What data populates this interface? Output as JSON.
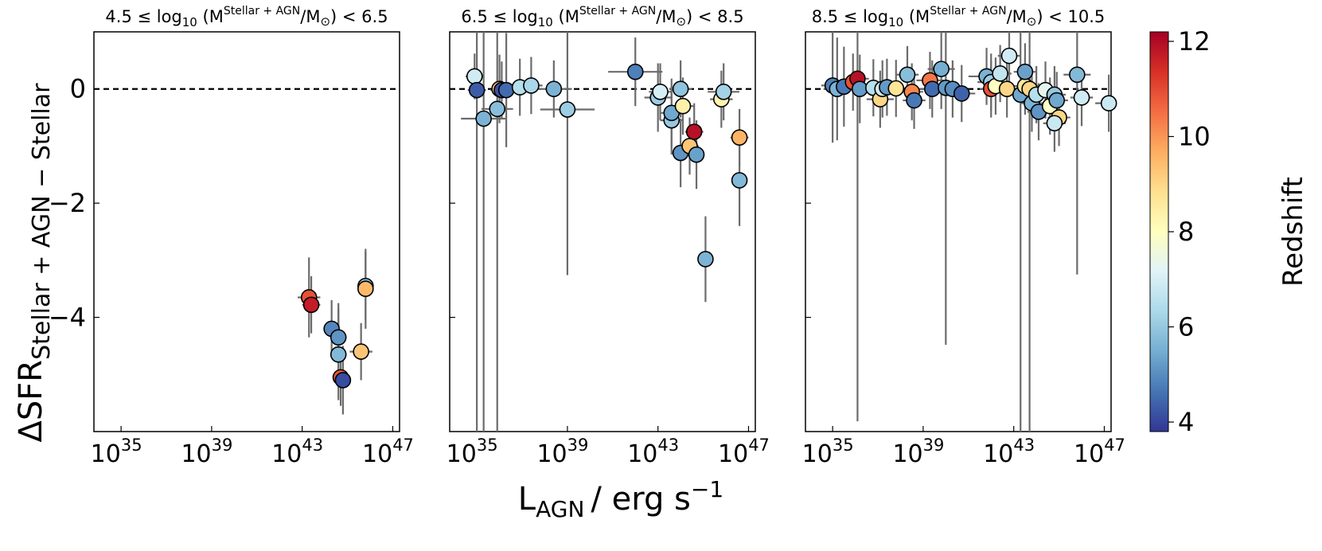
{
  "chart_data": {
    "type": "scatter",
    "xlabel": {
      "main": "L",
      "sub": "AGN",
      "unit": "/ erg s",
      "sup": "−1"
    },
    "ylabel": {
      "main": "ΔSFR",
      "sub": "Stellar + AGN − Stellar"
    },
    "x_tick_labels": [
      {
        "base": "10",
        "exp": "35",
        "value": 35
      },
      {
        "base": "10",
        "exp": "39",
        "value": 39
      },
      {
        "base": "10",
        "exp": "43",
        "value": 43
      },
      {
        "base": "10",
        "exp": "47",
        "value": 47
      }
    ],
    "y_tick_labels": [
      {
        "label": "0",
        "value": 0
      },
      {
        "label": "−2",
        "value": -2
      },
      {
        "label": "−4",
        "value": -4
      }
    ],
    "xlim": [
      33.8,
      47.3
    ],
    "ylim": [
      -6.0,
      1.0
    ],
    "reference_line_y": 0,
    "colorbar": {
      "label": "Redshift",
      "range": [
        3.8,
        12.2
      ],
      "ticks": [
        "4",
        "6",
        "8",
        "10",
        "12"
      ],
      "tick_values": [
        4,
        6,
        8,
        10,
        12
      ],
      "colormap": "RdYlBu_r"
    },
    "panels": [
      {
        "title": {
          "prefix": "4.5 ≤ log",
          "sub10": "10",
          "mass": "M",
          "sup": "Stellar + AGN",
          "rest": "/M",
          "sun": "⊙",
          "suffix": ") < 6.5"
        },
        "points": [
          {
            "x": 43.3,
            "y": -3.65,
            "z": 10.9,
            "xerr": 0.5,
            "yerr": 0.7
          },
          {
            "x": 43.4,
            "y": -3.78,
            "z": 11.7,
            "xerr": 0.4,
            "yerr": 0.5
          },
          {
            "x": 44.3,
            "y": -4.2,
            "z": 4.9,
            "xerr": 0.3,
            "yerr": 0.5
          },
          {
            "x": 44.6,
            "y": -4.35,
            "z": 5.1,
            "xerr": 0.3,
            "yerr": 0.6
          },
          {
            "x": 44.6,
            "y": -4.65,
            "z": 5.7,
            "xerr": 0.3,
            "yerr": 0.8
          },
          {
            "x": 44.7,
            "y": -5.05,
            "z": 10.8,
            "xerr": 0.2,
            "yerr": 0.5
          },
          {
            "x": 44.8,
            "y": -5.1,
            "z": 4.1,
            "xerr": 0.2,
            "yerr": 0.6
          },
          {
            "x": 45.8,
            "y": -3.45,
            "z": 5.7,
            "xerr": 0.2,
            "yerr": 0.6
          },
          {
            "x": 45.8,
            "y": -3.5,
            "z": 9.5,
            "xerr": 0.2,
            "yerr": 0.7
          },
          {
            "x": 45.6,
            "y": -4.6,
            "z": 9.3,
            "xerr": 0.5,
            "yerr": 0.5
          }
        ]
      },
      {
        "title": {
          "prefix": "6.5 ≤ log",
          "sub10": "10",
          "mass": "M",
          "sup": "Stellar + AGN",
          "rest": "/M",
          "sun": "⊙",
          "suffix": ") < 8.5"
        },
        "points": [
          {
            "x": 34.9,
            "y": 0.22,
            "z": 6.9,
            "xerr": 0.4,
            "yerr": 0.4
          },
          {
            "x": 35.0,
            "y": -0.02,
            "z": 4.3,
            "xerr": 0.4,
            "yerr": 6.0
          },
          {
            "x": 35.3,
            "y": -0.52,
            "z": 5.6,
            "xerr": 1.0,
            "yerr": 6.0
          },
          {
            "x": 35.9,
            "y": -0.35,
            "z": 5.8,
            "xerr": 0.7,
            "yerr": 6.0
          },
          {
            "x": 36.0,
            "y": 0.0,
            "z": 9.3,
            "xerr": 0.3,
            "yerr": 0.6
          },
          {
            "x": 36.1,
            "y": -0.02,
            "z": 4.2,
            "xerr": 0.5,
            "yerr": 0.5
          },
          {
            "x": 36.3,
            "y": -0.02,
            "z": 4.5,
            "xerr": 0.5,
            "yerr": 1.0
          },
          {
            "x": 36.9,
            "y": 0.03,
            "z": 6.5,
            "xerr": 0.6,
            "yerr": 0.5
          },
          {
            "x": 37.4,
            "y": 0.06,
            "z": 6.3,
            "xerr": 0.5,
            "yerr": 0.5
          },
          {
            "x": 38.4,
            "y": 0.0,
            "z": 5.6,
            "xerr": 0.8,
            "yerr": 0.5
          },
          {
            "x": 39.0,
            "y": -0.36,
            "z": 6.1,
            "xerr": 1.2,
            "yerr": 2.9
          },
          {
            "x": 42.0,
            "y": 0.3,
            "z": 4.8,
            "xerr": 1.2,
            "yerr": 0.6
          },
          {
            "x": 43.0,
            "y": -0.15,
            "z": 6.1,
            "xerr": 0.6,
            "yerr": 0.6
          },
          {
            "x": 43.1,
            "y": -0.05,
            "z": 7.0,
            "xerr": 0.5,
            "yerr": 0.5
          },
          {
            "x": 43.6,
            "y": -0.55,
            "z": 6.0,
            "xerr": 0.5,
            "yerr": 0.6
          },
          {
            "x": 43.6,
            "y": -0.42,
            "z": 5.4,
            "xerr": 0.5,
            "yerr": 0.6
          },
          {
            "x": 44.0,
            "y": 0.0,
            "z": 5.9,
            "xerr": 0.5,
            "yerr": 0.5
          },
          {
            "x": 44.0,
            "y": -1.12,
            "z": 5.1,
            "xerr": 0.4,
            "yerr": 0.6
          },
          {
            "x": 44.1,
            "y": -0.3,
            "z": 8.4,
            "xerr": 0.5,
            "yerr": 0.5
          },
          {
            "x": 44.4,
            "y": -1.0,
            "z": 9.3,
            "xerr": 0.4,
            "yerr": 0.5
          },
          {
            "x": 44.6,
            "y": -0.75,
            "z": 11.9,
            "xerr": 0.4,
            "yerr": 0.5
          },
          {
            "x": 44.7,
            "y": -1.15,
            "z": 5.3,
            "xerr": 0.3,
            "yerr": 0.6
          },
          {
            "x": 45.1,
            "y": -2.98,
            "z": 5.6,
            "xerr": 0.3,
            "yerr": 0.75
          },
          {
            "x": 45.8,
            "y": -0.18,
            "z": 8.3,
            "xerr": 0.5,
            "yerr": 0.5
          },
          {
            "x": 45.9,
            "y": -0.05,
            "z": 6.2,
            "xerr": 0.7,
            "yerr": 0.5
          },
          {
            "x": 46.6,
            "y": -0.85,
            "z": 9.6,
            "xerr": 0.4,
            "yerr": 0.5
          },
          {
            "x": 46.6,
            "y": -1.6,
            "z": 5.7,
            "xerr": 0.3,
            "yerr": 0.8
          }
        ]
      },
      {
        "title": {
          "prefix": "8.5 ≤ log",
          "sub10": "10",
          "mass": "M",
          "sup": "Stellar + AGN",
          "rest": "/M",
          "sun": "⊙",
          "suffix": ") < 10.5"
        },
        "points": [
          {
            "x": 35.0,
            "y": 0.06,
            "z": 4.8,
            "xerr": 0.5,
            "yerr": 1.0
          },
          {
            "x": 35.2,
            "y": 0.0,
            "z": 5.6,
            "xerr": 0.6,
            "yerr": 0.9
          },
          {
            "x": 35.5,
            "y": 0.04,
            "z": 4.7,
            "xerr": 0.6,
            "yerr": 0.7
          },
          {
            "x": 35.9,
            "y": 0.12,
            "z": 10.9,
            "xerr": 0.5,
            "yerr": 0.5
          },
          {
            "x": 36.1,
            "y": 0.18,
            "z": 11.9,
            "xerr": 0.5,
            "yerr": 6.0
          },
          {
            "x": 36.2,
            "y": 0.0,
            "z": 5.2,
            "xerr": 0.6,
            "yerr": 0.6
          },
          {
            "x": 36.8,
            "y": 0.02,
            "z": 6.5,
            "xerr": 0.6,
            "yerr": 0.5
          },
          {
            "x": 37.1,
            "y": -0.18,
            "z": 9.0,
            "xerr": 0.6,
            "yerr": 0.5
          },
          {
            "x": 37.2,
            "y": 0.0,
            "z": 6.9,
            "xerr": 0.6,
            "yerr": 0.5
          },
          {
            "x": 37.4,
            "y": 0.03,
            "z": 5.2,
            "xerr": 0.6,
            "yerr": 0.5
          },
          {
            "x": 37.8,
            "y": 0.01,
            "z": 8.7,
            "xerr": 0.6,
            "yerr": 0.5
          },
          {
            "x": 38.3,
            "y": 0.25,
            "z": 5.8,
            "xerr": 0.5,
            "yerr": 0.5
          },
          {
            "x": 38.5,
            "y": -0.05,
            "z": 10.2,
            "xerr": 0.5,
            "yerr": 0.5
          },
          {
            "x": 38.6,
            "y": -0.2,
            "z": 4.7,
            "xerr": 0.5,
            "yerr": 0.5
          },
          {
            "x": 39.3,
            "y": 0.15,
            "z": 10.4,
            "xerr": 0.6,
            "yerr": 0.5
          },
          {
            "x": 39.4,
            "y": 0.0,
            "z": 4.5,
            "xerr": 0.6,
            "yerr": 0.5
          },
          {
            "x": 39.8,
            "y": 0.35,
            "z": 5.5,
            "xerr": 0.6,
            "yerr": 0.7
          },
          {
            "x": 40.0,
            "y": 0.02,
            "z": 5.2,
            "xerr": 0.6,
            "yerr": 4.5
          },
          {
            "x": 40.3,
            "y": 0.0,
            "z": 5.0,
            "xerr": 0.6,
            "yerr": 0.5
          },
          {
            "x": 40.7,
            "y": -0.08,
            "z": 4.4,
            "xerr": 0.6,
            "yerr": 0.5
          },
          {
            "x": 41.8,
            "y": 0.22,
            "z": 5.6,
            "xerr": 0.8,
            "yerr": 0.5
          },
          {
            "x": 42.0,
            "y": 0.12,
            "z": 6.1,
            "xerr": 0.6,
            "yerr": 0.5
          },
          {
            "x": 42.0,
            "y": 0.0,
            "z": 10.9,
            "xerr": 0.5,
            "yerr": 0.5
          },
          {
            "x": 42.2,
            "y": 0.05,
            "z": 8.0,
            "xerr": 0.5,
            "yerr": 0.5
          },
          {
            "x": 42.4,
            "y": 0.27,
            "z": 6.7,
            "xerr": 0.5,
            "yerr": 0.5
          },
          {
            "x": 42.7,
            "y": 0.0,
            "z": 9.0,
            "xerr": 0.6,
            "yerr": 0.5
          },
          {
            "x": 42.8,
            "y": 0.58,
            "z": 6.9,
            "xerr": 0.5,
            "yerr": 0.5
          },
          {
            "x": 43.3,
            "y": -0.1,
            "z": 5.4,
            "xerr": 0.6,
            "yerr": 6.0
          },
          {
            "x": 43.5,
            "y": 0.05,
            "z": 8.6,
            "xerr": 0.6,
            "yerr": 0.5
          },
          {
            "x": 43.5,
            "y": 0.3,
            "z": 5.3,
            "xerr": 0.5,
            "yerr": 0.5
          },
          {
            "x": 43.7,
            "y": 0.0,
            "z": 9.0,
            "xerr": 0.5,
            "yerr": 6.0
          },
          {
            "x": 43.8,
            "y": -0.25,
            "z": 5.6,
            "xerr": 0.5,
            "yerr": 0.5
          },
          {
            "x": 44.0,
            "y": -0.1,
            "z": 6.5,
            "xerr": 0.5,
            "yerr": 0.5
          },
          {
            "x": 44.1,
            "y": -0.4,
            "z": 5.1,
            "xerr": 0.5,
            "yerr": 0.5
          },
          {
            "x": 44.4,
            "y": -0.02,
            "z": 7.3,
            "xerr": 0.5,
            "yerr": 0.5
          },
          {
            "x": 44.6,
            "y": -0.3,
            "z": 7.9,
            "xerr": 0.5,
            "yerr": 0.5
          },
          {
            "x": 44.8,
            "y": -0.1,
            "z": 6.0,
            "xerr": 0.5,
            "yerr": 0.5
          },
          {
            "x": 44.9,
            "y": -0.2,
            "z": 5.4,
            "xerr": 0.5,
            "yerr": 0.5
          },
          {
            "x": 45.0,
            "y": -0.5,
            "z": 9.0,
            "xerr": 0.5,
            "yerr": 0.5
          },
          {
            "x": 44.8,
            "y": -0.6,
            "z": 6.8,
            "xerr": 0.5,
            "yerr": 0.5
          },
          {
            "x": 45.8,
            "y": 0.25,
            "z": 5.7,
            "xerr": 0.6,
            "yerr": 3.5
          },
          {
            "x": 46.0,
            "y": -0.15,
            "z": 6.9,
            "xerr": 0.5,
            "yerr": 0.5
          },
          {
            "x": 47.2,
            "y": -0.25,
            "z": 6.8,
            "xerr": 0.6,
            "yerr": 0.5
          }
        ]
      }
    ]
  }
}
